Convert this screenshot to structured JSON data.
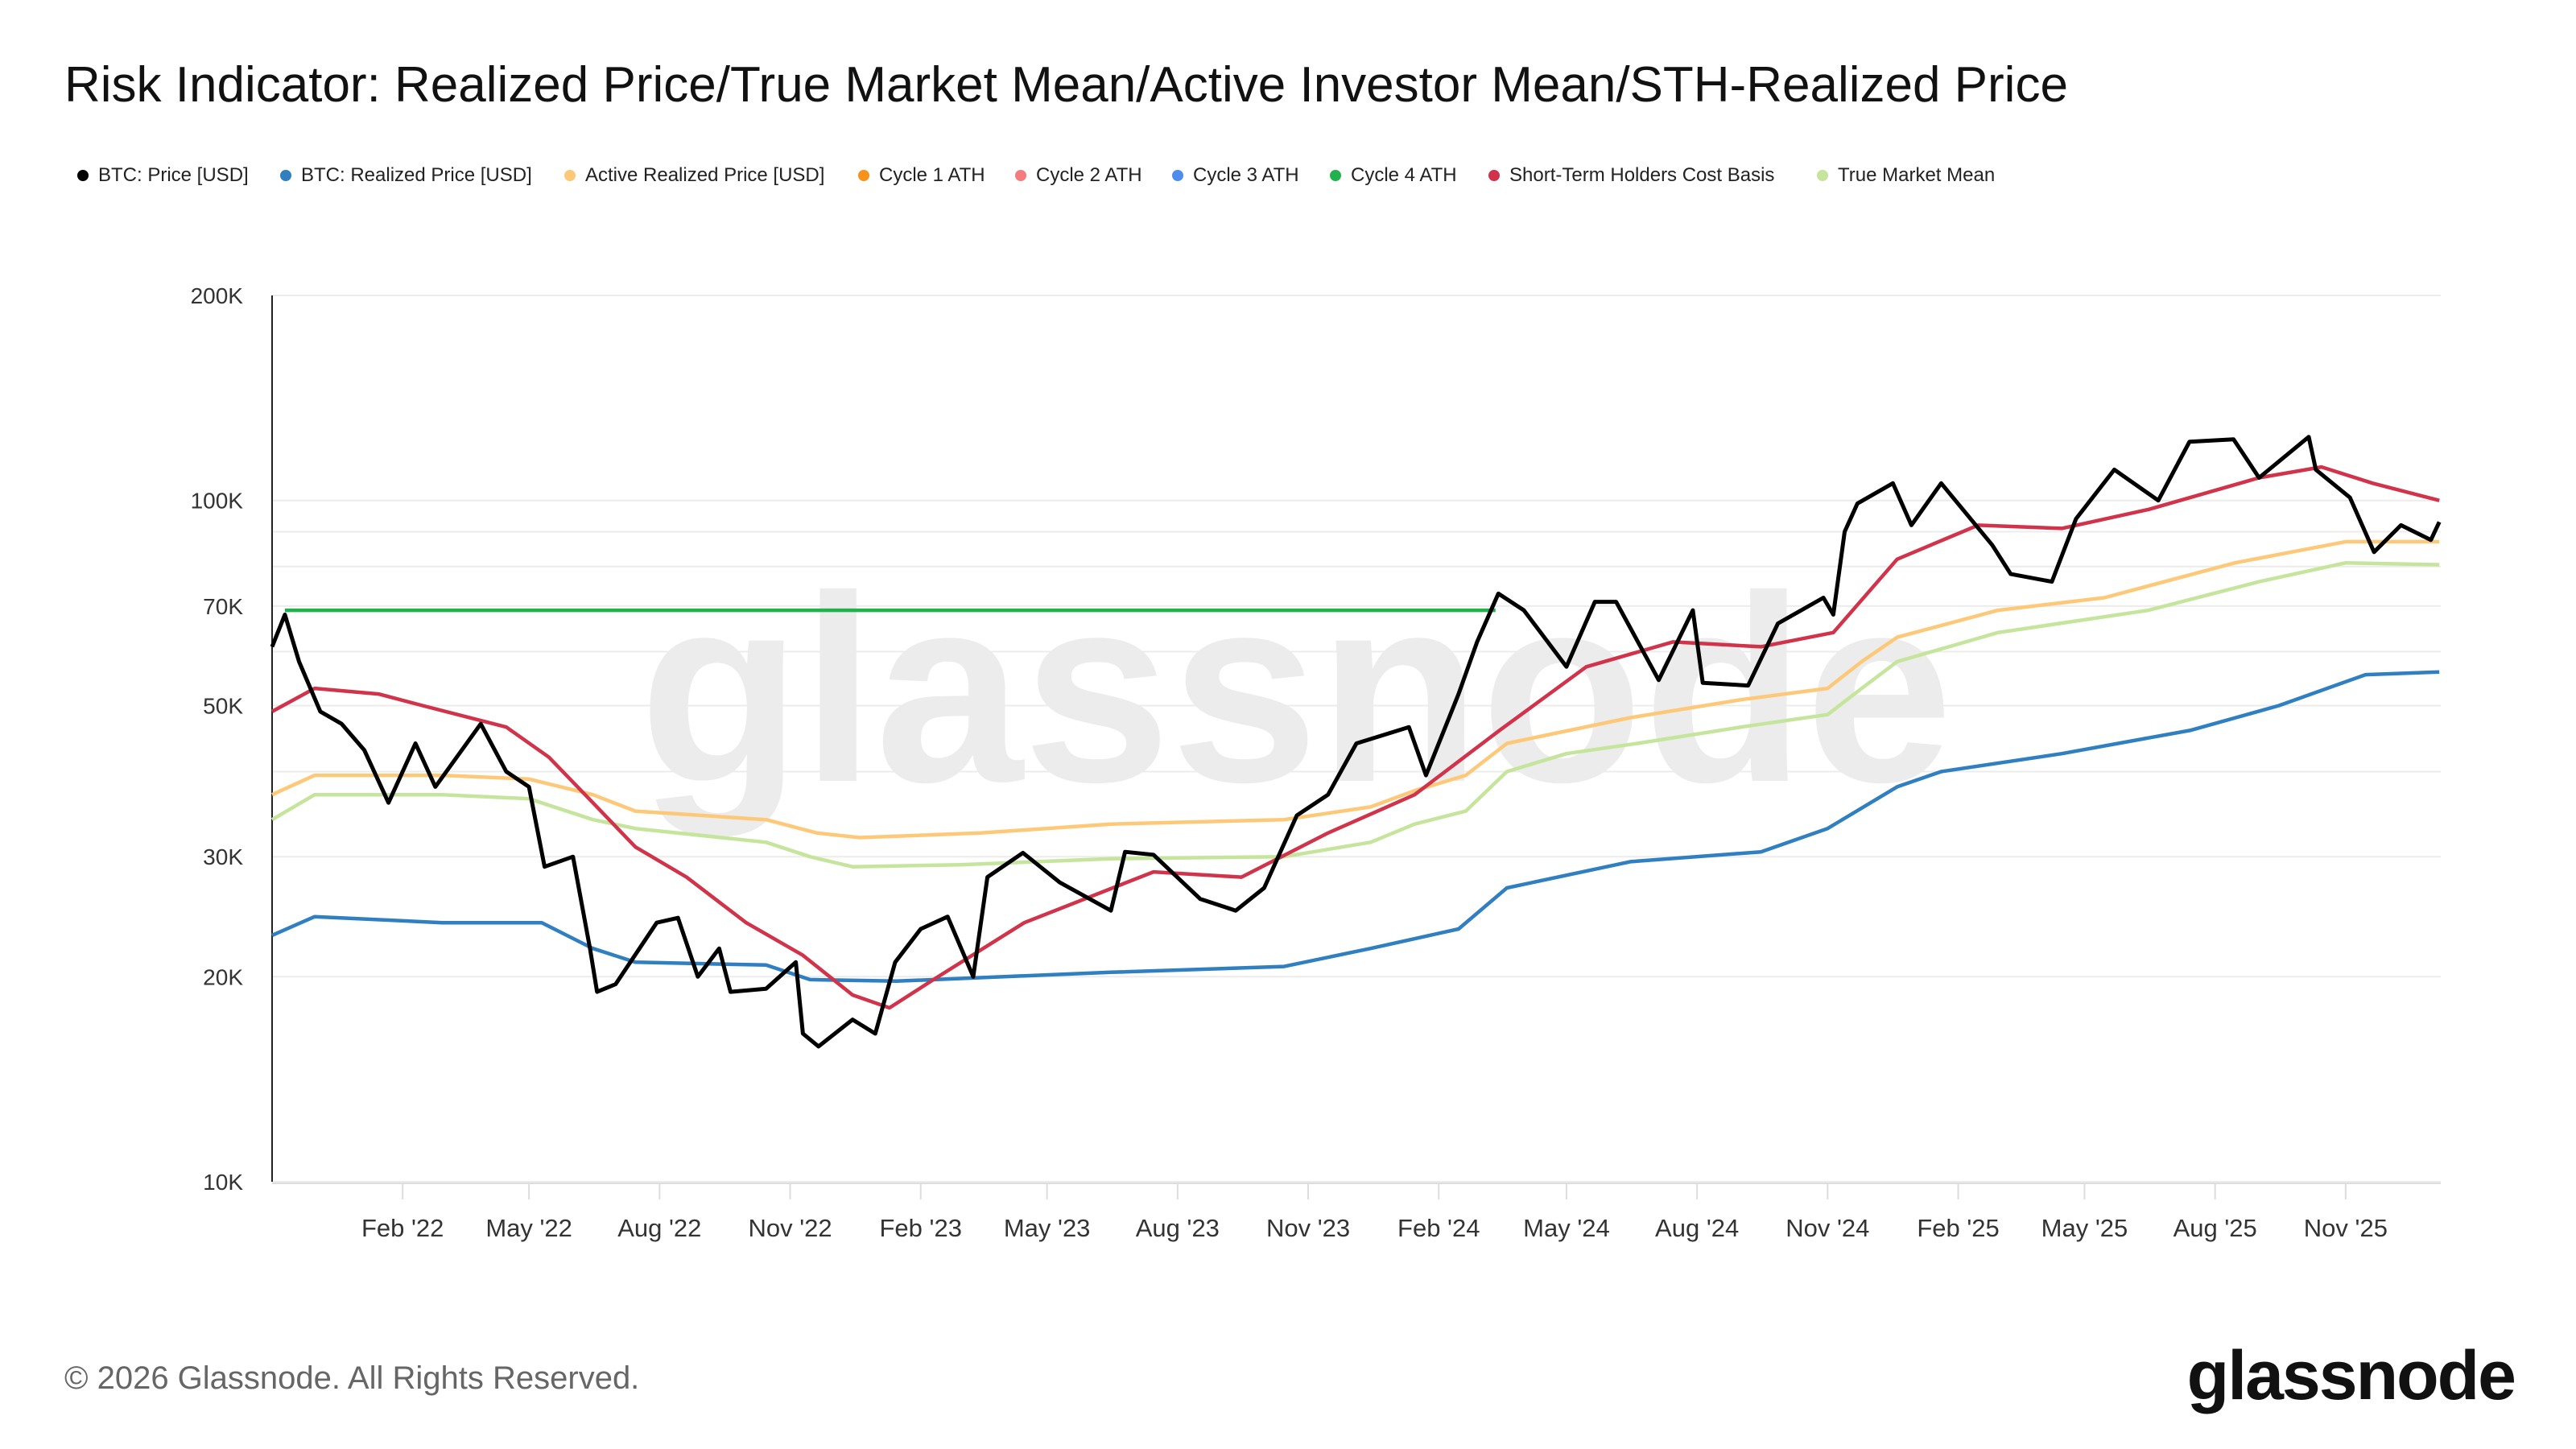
{
  "title": "Risk Indicator: Realized Price/True Market Mean/Active Investor Mean/STH-Realized Price",
  "footer": "© 2026 Glassnode. All Rights Reserved.",
  "logo": "glassnode",
  "watermark": "glassnode",
  "chart_data": {
    "type": "line",
    "title": "Risk Indicator: Realized Price/True Market Mean/Active Investor Mean/STH-Realized Price",
    "y_scale": "log",
    "ylim": [
      10000,
      200000
    ],
    "xlim": [
      "2021-11-01",
      "2026-01-07"
    ],
    "grid": true,
    "legend_placement": "top",
    "y_ticks": [
      {
        "value": 200000,
        "label": "200K"
      },
      {
        "value": 100000,
        "label": "100K"
      },
      {
        "value": 70000,
        "label": "70K"
      },
      {
        "value": 50000,
        "label": "50K"
      },
      {
        "value": 30000,
        "label": "30K"
      },
      {
        "value": 20000,
        "label": "20K"
      },
      {
        "value": 10000,
        "label": "10K"
      }
    ],
    "y_gridlines": [
      10000,
      20000,
      30000,
      40000,
      50000,
      60000,
      70000,
      80000,
      90000,
      100000,
      200000
    ],
    "x_ticks": [
      {
        "date": "2022-02-01",
        "label": "Feb '22"
      },
      {
        "date": "2022-05-01",
        "label": "May '22"
      },
      {
        "date": "2022-08-01",
        "label": "Aug '22"
      },
      {
        "date": "2022-11-01",
        "label": "Nov '22"
      },
      {
        "date": "2023-02-01",
        "label": "Feb '23"
      },
      {
        "date": "2023-05-01",
        "label": "May '23"
      },
      {
        "date": "2023-08-01",
        "label": "Aug '23"
      },
      {
        "date": "2023-11-01",
        "label": "Nov '23"
      },
      {
        "date": "2024-02-01",
        "label": "Feb '24"
      },
      {
        "date": "2024-05-01",
        "label": "May '24"
      },
      {
        "date": "2024-08-01",
        "label": "Aug '24"
      },
      {
        "date": "2024-11-01",
        "label": "Nov '24"
      },
      {
        "date": "2025-02-01",
        "label": "Feb '25"
      },
      {
        "date": "2025-05-01",
        "label": "May '25"
      },
      {
        "date": "2025-08-01",
        "label": "Aug '25"
      },
      {
        "date": "2025-11-01",
        "label": "Nov '25"
      }
    ],
    "legend": [
      {
        "name": "BTC: Price [USD]",
        "color": "#000000"
      },
      {
        "name": "BTC: Realized Price [USD]",
        "color": "#2f7fc1"
      },
      {
        "name": "Active Realized Price [USD]",
        "color": "#fdc979"
      },
      {
        "name": "Cycle 1 ATH",
        "color": "#f7931a"
      },
      {
        "name": "Cycle 2 ATH",
        "color": "#f47c7c"
      },
      {
        "name": "Cycle 3 ATH",
        "color": "#4f8cf0"
      },
      {
        "name": "Cycle 4 ATH",
        "color": "#22b14c"
      },
      {
        "name": "Short-Term Holders Cost Basis",
        "color": "#d1334a"
      },
      {
        "name": "True Market Mean",
        "color": "#c6e59c"
      }
    ],
    "series": [
      {
        "name": "True Market Mean",
        "color": "#c6e59c",
        "points": [
          [
            "2021-11-01",
            34000
          ],
          [
            "2021-12-01",
            37000
          ],
          [
            "2022-03-01",
            37000
          ],
          [
            "2022-05-01",
            36500
          ],
          [
            "2022-06-15",
            34000
          ],
          [
            "2022-07-15",
            33000
          ],
          [
            "2022-10-15",
            31500
          ],
          [
            "2022-11-15",
            30000
          ],
          [
            "2022-12-15",
            29000
          ],
          [
            "2023-03-01",
            29200
          ],
          [
            "2023-06-15",
            29800
          ],
          [
            "2023-10-15",
            30000
          ],
          [
            "2023-12-15",
            31500
          ],
          [
            "2024-01-15",
            33500
          ],
          [
            "2024-02-20",
            35000
          ],
          [
            "2024-03-20",
            40000
          ],
          [
            "2024-05-01",
            42500
          ],
          [
            "2024-06-20",
            44000
          ],
          [
            "2024-09-01",
            46500
          ],
          [
            "2024-11-01",
            48500
          ],
          [
            "2024-11-25",
            53000
          ],
          [
            "2024-12-20",
            58000
          ],
          [
            "2025-03-01",
            64000
          ],
          [
            "2025-06-15",
            69000
          ],
          [
            "2025-09-01",
            76000
          ],
          [
            "2025-11-01",
            81000
          ],
          [
            "2026-01-06",
            80500
          ]
        ]
      },
      {
        "name": "Active Realized Price [USD]",
        "color": "#fdc979",
        "points": [
          [
            "2021-11-01",
            37000
          ],
          [
            "2021-12-01",
            39500
          ],
          [
            "2022-03-01",
            39500
          ],
          [
            "2022-05-01",
            39000
          ],
          [
            "2022-06-15",
            37000
          ],
          [
            "2022-07-15",
            35000
          ],
          [
            "2022-10-15",
            34000
          ],
          [
            "2022-11-20",
            32500
          ],
          [
            "2022-12-20",
            32000
          ],
          [
            "2023-03-15",
            32500
          ],
          [
            "2023-06-15",
            33500
          ],
          [
            "2023-10-15",
            34000
          ],
          [
            "2023-12-15",
            35500
          ],
          [
            "2024-01-15",
            37500
          ],
          [
            "2024-02-20",
            39500
          ],
          [
            "2024-03-20",
            44000
          ],
          [
            "2024-06-15",
            48000
          ],
          [
            "2024-09-01",
            51000
          ],
          [
            "2024-11-01",
            53000
          ],
          [
            "2024-11-25",
            58000
          ],
          [
            "2024-12-20",
            63000
          ],
          [
            "2025-03-01",
            69000
          ],
          [
            "2025-05-15",
            72000
          ],
          [
            "2025-08-15",
            81000
          ],
          [
            "2025-11-01",
            87000
          ],
          [
            "2026-01-06",
            87000
          ]
        ]
      },
      {
        "name": "BTC: Realized Price [USD]",
        "color": "#2f7fc1",
        "points": [
          [
            "2021-11-01",
            23000
          ],
          [
            "2021-12-01",
            24500
          ],
          [
            "2022-03-01",
            24000
          ],
          [
            "2022-05-10",
            24000
          ],
          [
            "2022-06-15",
            22000
          ],
          [
            "2022-07-15",
            21000
          ],
          [
            "2022-10-15",
            20800
          ],
          [
            "2022-11-15",
            19800
          ],
          [
            "2023-01-15",
            19700
          ],
          [
            "2023-06-15",
            20300
          ],
          [
            "2023-10-15",
            20700
          ],
          [
            "2023-12-15",
            22000
          ],
          [
            "2024-02-15",
            23500
          ],
          [
            "2024-03-20",
            27000
          ],
          [
            "2024-06-15",
            29500
          ],
          [
            "2024-09-15",
            30500
          ],
          [
            "2024-11-01",
            33000
          ],
          [
            "2024-12-20",
            38000
          ],
          [
            "2025-01-20",
            40000
          ],
          [
            "2025-04-15",
            42500
          ],
          [
            "2025-07-15",
            46000
          ],
          [
            "2025-09-15",
            50000
          ],
          [
            "2025-11-15",
            55500
          ],
          [
            "2026-01-06",
            56000
          ]
        ]
      },
      {
        "name": "Short-Term Holders Cost Basis",
        "color": "#d1334a",
        "points": [
          [
            "2021-11-01",
            49000
          ],
          [
            "2021-12-01",
            53000
          ],
          [
            "2022-01-15",
            52000
          ],
          [
            "2022-02-15",
            50000
          ],
          [
            "2022-04-15",
            46500
          ],
          [
            "2022-05-15",
            42000
          ],
          [
            "2022-06-15",
            36000
          ],
          [
            "2022-07-15",
            31000
          ],
          [
            "2022-08-20",
            28000
          ],
          [
            "2022-10-01",
            24000
          ],
          [
            "2022-11-10",
            21500
          ],
          [
            "2022-12-15",
            18800
          ],
          [
            "2023-01-10",
            18000
          ],
          [
            "2023-02-10",
            19800
          ],
          [
            "2023-04-15",
            24000
          ],
          [
            "2023-07-15",
            28500
          ],
          [
            "2023-09-15",
            28000
          ],
          [
            "2023-11-15",
            32500
          ],
          [
            "2024-01-15",
            37000
          ],
          [
            "2024-03-15",
            46000
          ],
          [
            "2024-05-15",
            57000
          ],
          [
            "2024-07-15",
            62000
          ],
          [
            "2024-09-15",
            61000
          ],
          [
            "2024-11-05",
            64000
          ],
          [
            "2024-12-20",
            82000
          ],
          [
            "2025-02-15",
            92000
          ],
          [
            "2025-04-15",
            91000
          ],
          [
            "2025-06-15",
            97000
          ],
          [
            "2025-09-01",
            108000
          ],
          [
            "2025-10-15",
            112000
          ],
          [
            "2025-11-20",
            106000
          ],
          [
            "2026-01-06",
            100000
          ]
        ]
      },
      {
        "name": "Cycle 4 ATH",
        "color": "#22b14c",
        "points": [
          [
            "2021-11-10",
            69000
          ],
          [
            "2024-03-12",
            69000
          ]
        ]
      },
      {
        "name": "BTC: Price [USD]",
        "color": "#000000",
        "points": [
          [
            "2021-11-01",
            61000
          ],
          [
            "2021-11-10",
            68000
          ],
          [
            "2021-11-20",
            58000
          ],
          [
            "2021-12-05",
            49000
          ],
          [
            "2021-12-20",
            47000
          ],
          [
            "2022-01-05",
            43000
          ],
          [
            "2022-01-22",
            36000
          ],
          [
            "2022-02-10",
            44000
          ],
          [
            "2022-02-24",
            38000
          ],
          [
            "2022-03-28",
            47000
          ],
          [
            "2022-04-15",
            40000
          ],
          [
            "2022-05-01",
            38000
          ],
          [
            "2022-05-12",
            29000
          ],
          [
            "2022-06-01",
            30000
          ],
          [
            "2022-06-13",
            22000
          ],
          [
            "2022-06-18",
            19000
          ],
          [
            "2022-07-01",
            19500
          ],
          [
            "2022-07-30",
            24000
          ],
          [
            "2022-08-14",
            24400
          ],
          [
            "2022-08-28",
            20000
          ],
          [
            "2022-09-12",
            22000
          ],
          [
            "2022-09-20",
            19000
          ],
          [
            "2022-10-15",
            19200
          ],
          [
            "2022-11-05",
            21000
          ],
          [
            "2022-11-10",
            16500
          ],
          [
            "2022-11-21",
            15800
          ],
          [
            "2022-12-15",
            17300
          ],
          [
            "2022-12-31",
            16500
          ],
          [
            "2023-01-14",
            21000
          ],
          [
            "2023-02-01",
            23500
          ],
          [
            "2023-02-20",
            24500
          ],
          [
            "2023-03-10",
            20000
          ],
          [
            "2023-03-20",
            28000
          ],
          [
            "2023-04-14",
            30400
          ],
          [
            "2023-05-10",
            27500
          ],
          [
            "2023-06-15",
            25000
          ],
          [
            "2023-06-25",
            30500
          ],
          [
            "2023-07-15",
            30200
          ],
          [
            "2023-08-17",
            26000
          ],
          [
            "2023-09-11",
            25000
          ],
          [
            "2023-10-01",
            27000
          ],
          [
            "2023-10-24",
            34500
          ],
          [
            "2023-11-15",
            37000
          ],
          [
            "2023-12-05",
            44000
          ],
          [
            "2024-01-11",
            46500
          ],
          [
            "2024-01-23",
            39500
          ],
          [
            "2024-02-15",
            52000
          ],
          [
            "2024-02-28",
            62000
          ],
          [
            "2024-03-14",
            73000
          ],
          [
            "2024-04-01",
            69000
          ],
          [
            "2024-05-01",
            57000
          ],
          [
            "2024-05-21",
            71000
          ],
          [
            "2024-06-05",
            71000
          ],
          [
            "2024-07-05",
            54500
          ],
          [
            "2024-07-29",
            69000
          ],
          [
            "2024-08-05",
            54000
          ],
          [
            "2024-09-06",
            53500
          ],
          [
            "2024-09-27",
            66000
          ],
          [
            "2024-10-29",
            72000
          ],
          [
            "2024-11-05",
            68000
          ],
          [
            "2024-11-13",
            90000
          ],
          [
            "2024-11-22",
            99000
          ],
          [
            "2024-12-17",
            106000
          ],
          [
            "2024-12-30",
            92000
          ],
          [
            "2025-01-20",
            106000
          ],
          [
            "2025-02-25",
            86000
          ],
          [
            "2025-03-10",
            78000
          ],
          [
            "2025-04-08",
            76000
          ],
          [
            "2025-04-25",
            94000
          ],
          [
            "2025-05-22",
            111000
          ],
          [
            "2025-06-22",
            100000
          ],
          [
            "2025-07-14",
            122000
          ],
          [
            "2025-08-14",
            123000
          ],
          [
            "2025-09-01",
            108000
          ],
          [
            "2025-10-06",
            124000
          ],
          [
            "2025-10-11",
            111000
          ],
          [
            "2025-11-04",
            101000
          ],
          [
            "2025-11-21",
            84000
          ],
          [
            "2025-12-10",
            92000
          ],
          [
            "2025-12-31",
            87500
          ],
          [
            "2026-01-06",
            93000
          ]
        ]
      }
    ]
  }
}
